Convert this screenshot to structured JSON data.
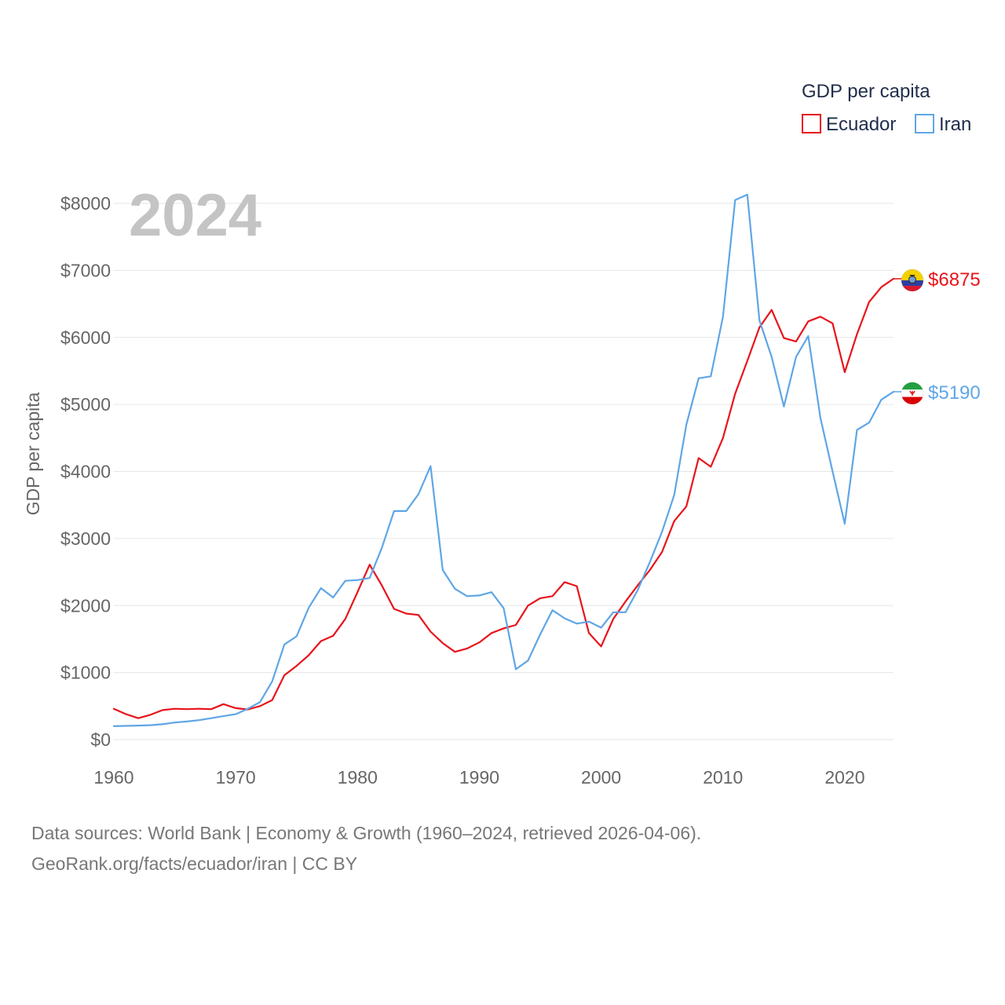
{
  "chart_data": {
    "type": "line",
    "title": "GDP per capita",
    "ylabel": "GDP per capita",
    "xlabel": "",
    "year_label": "2024",
    "xlim": [
      1960,
      2024
    ],
    "ylim": [
      0,
      8000
    ],
    "x_ticks": [
      "1960",
      "1970",
      "1980",
      "1990",
      "2000",
      "2010",
      "2020"
    ],
    "y_ticks": [
      "$0",
      "$1000",
      "$2000",
      "$3000",
      "$4000",
      "$5000",
      "$6000",
      "$7000",
      "$8000"
    ],
    "legend": {
      "title": "GDP per capita",
      "position": "top-right"
    },
    "x": [
      1960,
      1961,
      1962,
      1963,
      1964,
      1965,
      1966,
      1967,
      1968,
      1969,
      1970,
      1971,
      1972,
      1973,
      1974,
      1975,
      1976,
      1977,
      1978,
      1979,
      1980,
      1981,
      1982,
      1983,
      1984,
      1985,
      1986,
      1987,
      1988,
      1989,
      1990,
      1991,
      1992,
      1993,
      1994,
      1995,
      1996,
      1997,
      1998,
      1999,
      2000,
      2001,
      2002,
      2003,
      2004,
      2005,
      2006,
      2007,
      2008,
      2009,
      2010,
      2011,
      2012,
      2013,
      2014,
      2015,
      2016,
      2017,
      2018,
      2019,
      2020,
      2021,
      2022,
      2023,
      2024
    ],
    "series": [
      {
        "name": "Ecuador",
        "color": "#e8141b",
        "end_label": "$6875",
        "flag": "ecuador-flag-icon",
        "values": [
          460,
          380,
          320,
          370,
          440,
          460,
          455,
          460,
          455,
          530,
          470,
          450,
          500,
          590,
          960,
          1100,
          1260,
          1470,
          1550,
          1800,
          2200,
          2610,
          2300,
          1950,
          1880,
          1860,
          1610,
          1440,
          1310,
          1360,
          1450,
          1590,
          1660,
          1710,
          2000,
          2110,
          2140,
          2350,
          2290,
          1590,
          1390,
          1800,
          2060,
          2300,
          2530,
          2800,
          3260,
          3480,
          4200,
          4070,
          4500,
          5160,
          5650,
          6150,
          6410,
          5990,
          5940,
          6240,
          6310,
          6210,
          5480,
          6050,
          6530,
          6750,
          6875
        ]
      },
      {
        "name": "Iran",
        "color": "#5fa6e6",
        "end_label": "$5190",
        "flag": "iran-flag-icon",
        "values": [
          200,
          205,
          210,
          215,
          230,
          255,
          270,
          290,
          320,
          350,
          380,
          460,
          560,
          870,
          1420,
          1540,
          1970,
          2260,
          2120,
          2370,
          2380,
          2410,
          2860,
          3410,
          3410,
          3660,
          4080,
          2530,
          2250,
          2140,
          2150,
          2200,
          1960,
          1050,
          1180,
          1570,
          1930,
          1810,
          1730,
          1760,
          1670,
          1900,
          1900,
          2230,
          2650,
          3100,
          3650,
          4700,
          5390,
          5420,
          6310,
          8050,
          8130,
          6250,
          5710,
          4970,
          5710,
          6020,
          4800,
          4000,
          3220,
          4620,
          4730,
          5070,
          5190
        ]
      }
    ]
  },
  "footer": {
    "line1": "Data sources: World Bank | Economy & Growth (1960–2024, retrieved 2026-04-06).",
    "line2": "GeoRank.org/facts/ecuador/iran | CC BY"
  }
}
